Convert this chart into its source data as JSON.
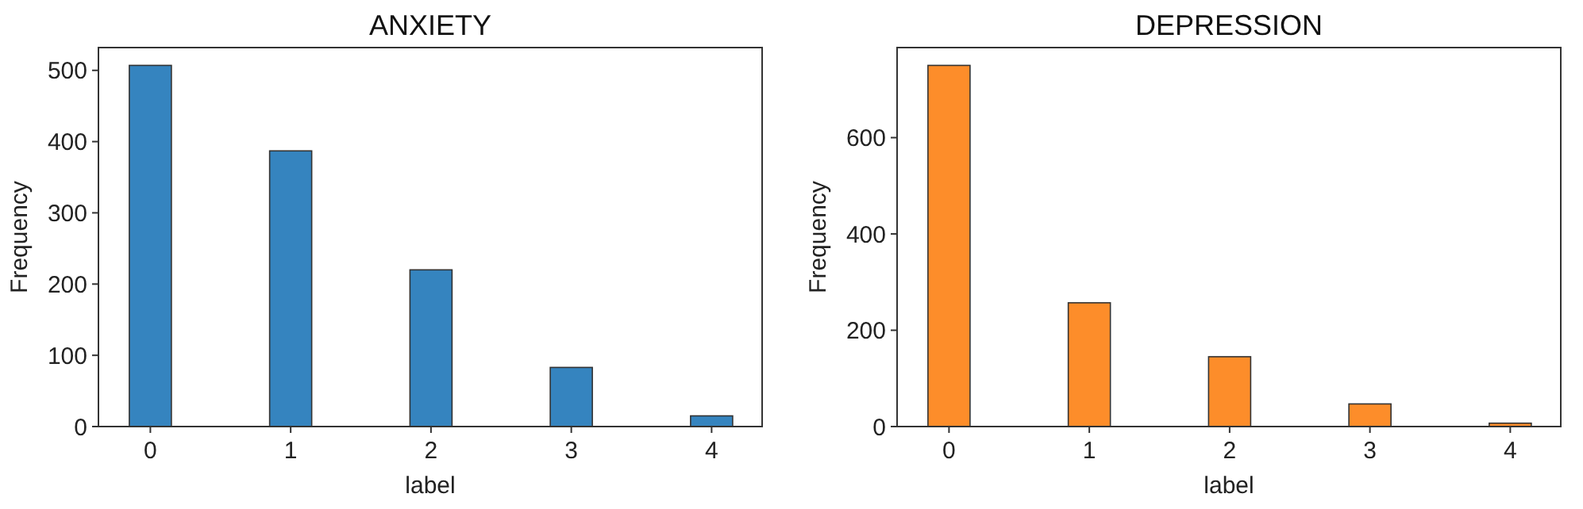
{
  "chart_data": [
    {
      "type": "bar",
      "title": "ANXIETY",
      "xlabel": "label",
      "ylabel": "Frequency",
      "categories": [
        "0",
        "1",
        "2",
        "3",
        "4"
      ],
      "values": [
        507,
        387,
        220,
        83,
        15
      ],
      "color": "#3584bf",
      "ylim": [
        0,
        532
      ],
      "yticks": [
        0,
        100,
        200,
        300,
        400,
        500
      ],
      "grid": false
    },
    {
      "type": "bar",
      "title": "DEPRESSION",
      "xlabel": "label",
      "ylabel": "Frequency",
      "categories": [
        "0",
        "1",
        "2",
        "3",
        "4"
      ],
      "values": [
        750,
        257,
        145,
        47,
        7
      ],
      "color": "#fd8d2a",
      "ylim": [
        0,
        787
      ],
      "yticks": [
        0,
        200,
        400,
        600
      ],
      "grid": false
    }
  ]
}
